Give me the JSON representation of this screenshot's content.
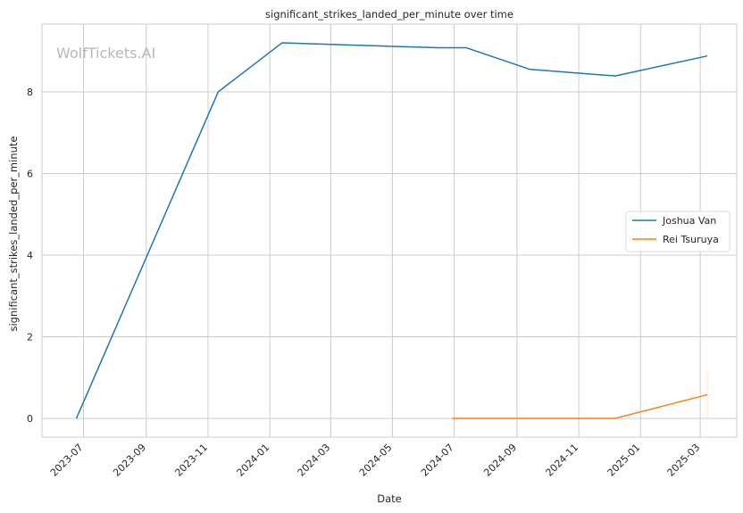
{
  "chart_data": {
    "type": "line",
    "title": "significant_strikes_landed_per_minute over time",
    "xlabel": "Date",
    "ylabel": "significant_strikes_landed_per_minute",
    "watermark": "WolfTickets.AI",
    "x_ticks": [
      "2023-07",
      "2023-09",
      "2023-11",
      "2024-01",
      "2024-03",
      "2024-05",
      "2024-07",
      "2024-09",
      "2024-11",
      "2025-01",
      "2025-03"
    ],
    "y_ticks": [
      0,
      2,
      4,
      6,
      8
    ],
    "xlim": [
      "2023-05-21",
      "2025-04-06"
    ],
    "ylim": [
      -0.46,
      9.66
    ],
    "grid": true,
    "legend_position": "right",
    "series": [
      {
        "name": "Joshua Van",
        "color": "#1f77b4",
        "x": [
          "2023-06-24",
          "2023-11-11",
          "2024-01-13",
          "2024-06-15",
          "2024-07-13",
          "2024-09-14",
          "2024-12-07",
          "2025-03-08"
        ],
        "y": [
          0,
          8.0,
          9.2,
          9.08,
          9.08,
          8.55,
          8.39,
          8.88
        ]
      },
      {
        "name": "Rei Tsuruya",
        "color": "#ff7f0e",
        "x": [
          "2024-06-29",
          "2024-12-07",
          "2025-03-08"
        ],
        "y": [
          0,
          0,
          0.58
        ],
        "band": {
          "x": "2025-03-08",
          "low": 0,
          "high": 1.16
        }
      }
    ]
  }
}
